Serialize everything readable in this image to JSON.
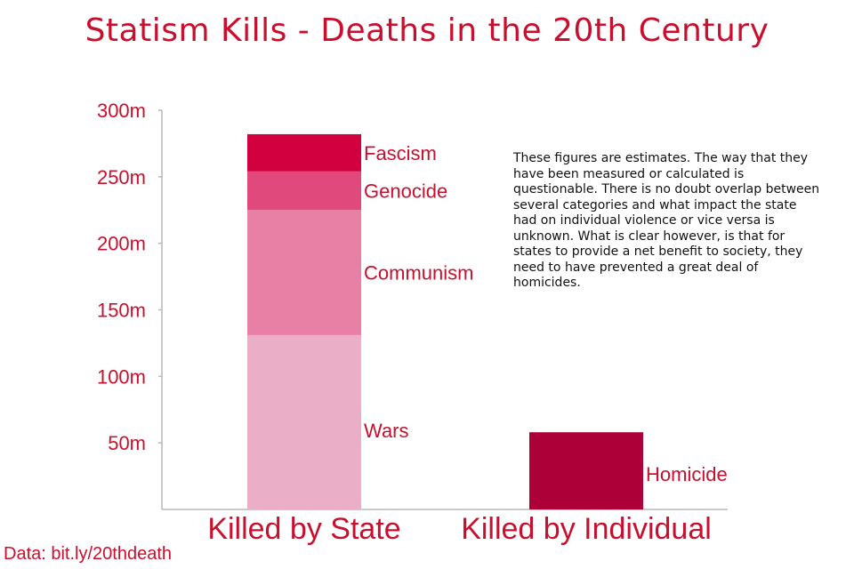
{
  "title": "Statism Kills - Deaths in the 20th Century",
  "note": "These figures are estimates. The way that they have been measured or calculated is questionable. There is no doubt overlap between several categories and what impact the state had on individual violence or vice versa is unknown. What is clear however, is that for states to provide a net benefit to society, they need to have prevented a great deal of homicides.",
  "source": "Data: bit.ly/20thdeath",
  "colors": {
    "text": "#c8102e",
    "axis": "#b8b8b8",
    "wars": "#eaaec6",
    "communism": "#e87fa5",
    "genocide": "#e0497c",
    "fascism": "#d3003f",
    "homicide": "#ae0038"
  },
  "chart_data": {
    "type": "bar",
    "stacked": true,
    "categories": [
      "Killed by State",
      "Killed by Individual"
    ],
    "ylim": [
      0,
      300
    ],
    "yticks": [
      50,
      100,
      150,
      200,
      250,
      300
    ],
    "ytick_labels": [
      "50m",
      "100m",
      "150m",
      "200m",
      "250m",
      "300m"
    ],
    "grid": false,
    "series": [
      {
        "name": "Wars",
        "values": [
          131,
          0
        ],
        "color": "#eaaec6"
      },
      {
        "name": "Communism",
        "values": [
          94,
          0
        ],
        "color": "#e87fa5"
      },
      {
        "name": "Genocide",
        "values": [
          29,
          0
        ],
        "color": "#e0497c"
      },
      {
        "name": "Fascism",
        "values": [
          28,
          0
        ],
        "color": "#d3003f"
      },
      {
        "name": "Homicide",
        "values": [
          0,
          58
        ],
        "color": "#ae0038"
      }
    ]
  }
}
